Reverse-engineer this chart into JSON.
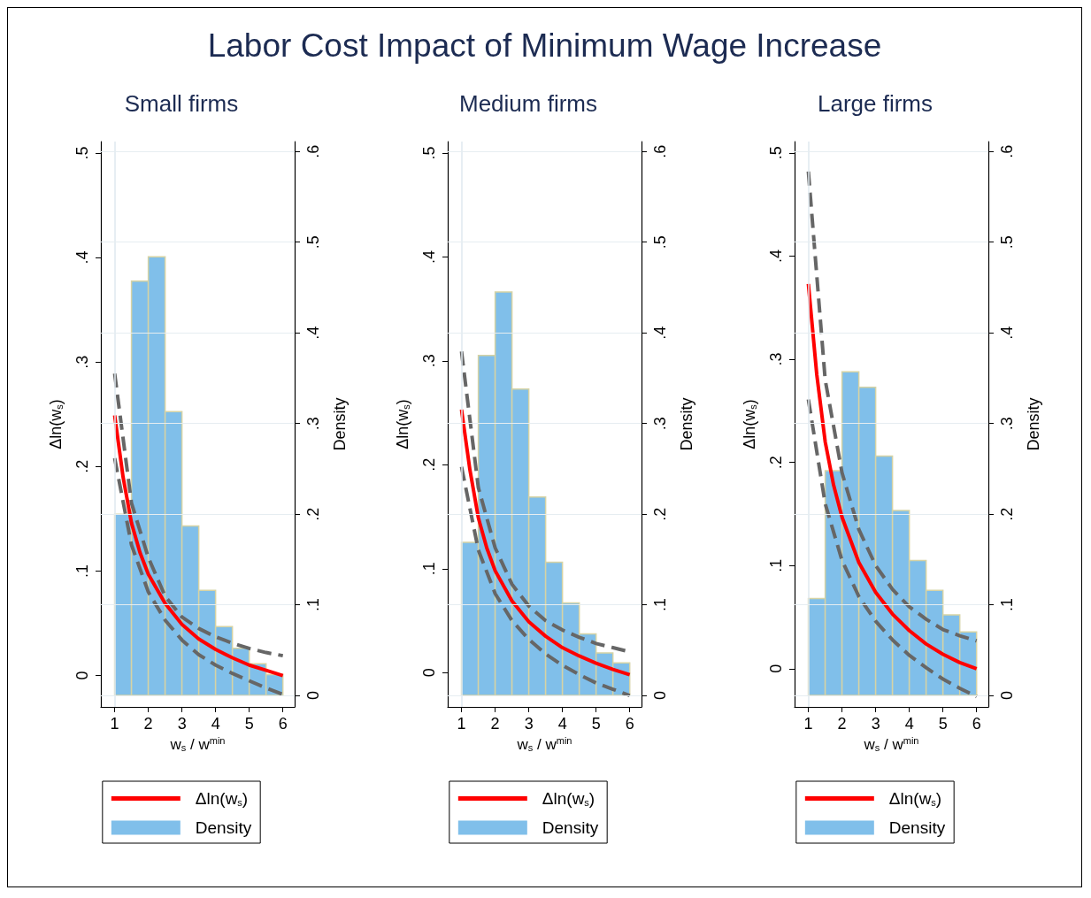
{
  "chart_data": [
    {
      "type": "line",
      "title": "Labor Cost Impact of Minimum Wage Increase",
      "subtitle": "Small firms",
      "xlabel": "w$_{s}$ / w$^{min}$",
      "ylabel": "Δln(w$_{s}$)",
      "y2label": "Density",
      "x": [
        1,
        1.25,
        1.5,
        1.75,
        2,
        2.5,
        3,
        3.5,
        4,
        4.5,
        5,
        5.5,
        6
      ],
      "series": [
        {
          "type": "histogram",
          "name": "Density",
          "axis": "y2",
          "color": "#80bfea",
          "bins": [
            1,
            1.5,
            2,
            2.5,
            3,
            3.5,
            4,
            4.5,
            5,
            5.5,
            6
          ],
          "values": [
            0.2,
            0.457,
            0.484,
            0.313,
            0.187,
            0.116,
            0.076,
            0.052,
            0.035,
            0.023
          ]
        },
        {
          "x": [
            1,
            1.5,
            2,
            2.5,
            3,
            3.5,
            4,
            4.5,
            5,
            5.5,
            6
          ],
          "color": "#666666",
          "line_style": "dashed",
          "values": [
            0.289,
            0.165,
            0.113,
            0.076,
            0.056,
            0.045,
            0.037,
            0.031,
            0.026,
            0.022,
            0.019
          ]
        },
        {
          "x": [
            1,
            1.5,
            2,
            2.5,
            3,
            3.5,
            4,
            4.5,
            5,
            5.5,
            6
          ],
          "color": "#666666",
          "line_style": "dashed",
          "values": [
            0.208,
            0.125,
            0.08,
            0.053,
            0.034,
            0.02,
            0.01,
            0.002,
            -0.005,
            -0.012,
            -0.018
          ]
        },
        {
          "name": "Δln(w$_{s}$)",
          "color": "#ff0000",
          "values": [
            0.249,
            0.19,
            0.146,
            0.118,
            0.097,
            0.069,
            0.049,
            0.035,
            0.025,
            0.017,
            0.01,
            0.005,
            0
          ]
        }
      ],
      "xlim": [
        0.59,
        6.35
      ],
      "xticks": [
        1,
        2,
        3,
        4,
        5,
        6
      ],
      "ylim": [
        -0.03,
        0.511
      ],
      "yticks": [
        {
          "value": 0,
          "label": "0"
        },
        {
          "value": 0.1,
          "label": ".1"
        },
        {
          "value": 0.2,
          "label": ".2"
        },
        {
          "value": 0.3,
          "label": ".3"
        },
        {
          "value": 0.4,
          "label": ".4"
        },
        {
          "value": 0.5,
          "label": ".5"
        }
      ],
      "y2lim": [
        -0.0126,
        0.611
      ],
      "y2ticks": [
        {
          "value": 0,
          "label": "0"
        },
        {
          "value": 0.1,
          "label": ".1"
        },
        {
          "value": 0.2,
          "label": ".2"
        },
        {
          "value": 0.3,
          "label": ".3"
        },
        {
          "value": 0.4,
          "label": ".4"
        },
        {
          "value": 0.5,
          "label": ".5"
        },
        {
          "value": 0.6,
          "label": ".6"
        }
      ],
      "ref_lines": [
        {
          "axis": "x",
          "value": 1,
          "color": "#dfe9ef"
        }
      ],
      "grid": "y",
      "legend": "bottom",
      "marker": "none",
      "line_style": "solid"
    },
    {
      "type": "line",
      "subtitle": "Medium firms",
      "xlabel": "w$_{s}$ / w$^{min}$",
      "ylabel": "Δln(w$_{s}$)",
      "y2label": "Density",
      "x": [
        1,
        1.25,
        1.5,
        1.75,
        2,
        2.5,
        3,
        3.5,
        4,
        4.5,
        5,
        5.5,
        6
      ],
      "series": [
        {
          "type": "histogram",
          "name": "Density",
          "axis": "y2",
          "color": "#80bfea",
          "bins": [
            1,
            1.5,
            2,
            2.5,
            3,
            3.5,
            4,
            4.5,
            5,
            5.5,
            6
          ],
          "values": [
            0.169,
            0.375,
            0.445,
            0.338,
            0.219,
            0.147,
            0.102,
            0.068,
            0.047,
            0.036
          ]
        },
        {
          "x": [
            1,
            1.5,
            2,
            2.5,
            3,
            3.5,
            4,
            4.5,
            5,
            5.5,
            6
          ],
          "color": "#666666",
          "line_style": "dashed",
          "values": [
            0.309,
            0.178,
            0.12,
            0.085,
            0.064,
            0.05,
            0.041,
            0.034,
            0.028,
            0.024,
            0.02
          ]
        },
        {
          "x": [
            1,
            1.5,
            2,
            2.5,
            3,
            3.5,
            4,
            4.5,
            5,
            5.5,
            6
          ],
          "color": "#666666",
          "line_style": "dashed",
          "values": [
            0.198,
            0.118,
            0.076,
            0.05,
            0.032,
            0.018,
            0.007,
            -0.002,
            -0.01,
            -0.016,
            -0.022
          ]
        },
        {
          "name": "Δln(w$_{s}$)",
          "color": "#ff0000",
          "values": [
            0.253,
            0.195,
            0.149,
            0.12,
            0.098,
            0.069,
            0.049,
            0.035,
            0.024,
            0.016,
            0.009,
            0.003,
            -0.002
          ]
        }
      ],
      "xlim": [
        0.59,
        6.35
      ],
      "xticks": [
        1,
        2,
        3,
        4,
        5,
        6
      ],
      "ylim": [
        -0.033,
        0.511
      ],
      "yticks": [
        {
          "value": 0,
          "label": "0"
        },
        {
          "value": 0.1,
          "label": ".1"
        },
        {
          "value": 0.2,
          "label": ".2"
        },
        {
          "value": 0.3,
          "label": ".3"
        },
        {
          "value": 0.4,
          "label": ".4"
        },
        {
          "value": 0.5,
          "label": ".5"
        }
      ],
      "y2lim": [
        -0.0126,
        0.611
      ],
      "y2ticks": [
        {
          "value": 0,
          "label": "0"
        },
        {
          "value": 0.1,
          "label": ".1"
        },
        {
          "value": 0.2,
          "label": ".2"
        },
        {
          "value": 0.3,
          "label": ".3"
        },
        {
          "value": 0.4,
          "label": ".4"
        },
        {
          "value": 0.5,
          "label": ".5"
        },
        {
          "value": 0.6,
          "label": ".6"
        }
      ],
      "ref_lines": [
        {
          "axis": "x",
          "value": 1,
          "color": "#dfe9ef"
        }
      ],
      "grid": "y",
      "legend": "bottom",
      "marker": "none",
      "line_style": "solid"
    },
    {
      "type": "line",
      "subtitle": "Large firms",
      "xlabel": "w$_{s}$ / w$^{min}$",
      "ylabel": "Δln(w$_{s}$)",
      "y2label": "Density",
      "x": [
        1,
        1.25,
        1.5,
        1.75,
        2,
        2.5,
        3,
        3.5,
        4,
        4.5,
        5,
        5.5,
        6
      ],
      "series": [
        {
          "type": "histogram",
          "name": "Density",
          "axis": "y2",
          "color": "#80bfea",
          "bins": [
            1,
            1.5,
            2,
            2.5,
            3,
            3.5,
            4,
            4.5,
            5,
            5.5,
            6
          ],
          "values": [
            0.107,
            0.248,
            0.357,
            0.34,
            0.264,
            0.204,
            0.149,
            0.116,
            0.089,
            0.07
          ]
        },
        {
          "x": [
            1,
            1.5,
            2,
            2.5,
            3,
            3.5,
            4,
            4.5,
            5,
            5.5,
            6
          ],
          "color": "#666666",
          "line_style": "dashed",
          "values": [
            0.482,
            0.28,
            0.19,
            0.135,
            0.1,
            0.077,
            0.06,
            0.048,
            0.038,
            0.032,
            0.027
          ]
        },
        {
          "x": [
            1,
            1.5,
            2,
            2.5,
            3,
            3.5,
            4,
            4.5,
            5,
            5.5,
            6
          ],
          "color": "#666666",
          "line_style": "dashed",
          "values": [
            0.261,
            0.16,
            0.105,
            0.07,
            0.046,
            0.028,
            0.013,
            0.001,
            -0.01,
            -0.019,
            -0.027
          ]
        },
        {
          "name": "Δln(w$_{s}$)",
          "color": "#ff0000",
          "values": [
            0.373,
            0.285,
            0.22,
            0.178,
            0.147,
            0.103,
            0.074,
            0.053,
            0.037,
            0.024,
            0.014,
            0.006,
            0
          ]
        }
      ],
      "xlim": [
        0.59,
        6.35
      ],
      "xticks": [
        1,
        2,
        3,
        4,
        5,
        6
      ],
      "ylim": [
        -0.037,
        0.511
      ],
      "yticks": [
        {
          "value": 0,
          "label": "0"
        },
        {
          "value": 0.1,
          "label": ".1"
        },
        {
          "value": 0.2,
          "label": ".2"
        },
        {
          "value": 0.3,
          "label": ".3"
        },
        {
          "value": 0.4,
          "label": ".4"
        },
        {
          "value": 0.5,
          "label": ".5"
        }
      ],
      "y2lim": [
        -0.0126,
        0.611
      ],
      "y2ticks": [
        {
          "value": 0,
          "label": "0"
        },
        {
          "value": 0.1,
          "label": ".1"
        },
        {
          "value": 0.2,
          "label": ".2"
        },
        {
          "value": 0.3,
          "label": ".3"
        },
        {
          "value": 0.4,
          "label": ".4"
        },
        {
          "value": 0.5,
          "label": ".5"
        },
        {
          "value": 0.6,
          "label": ".6"
        }
      ],
      "ref_lines": [
        {
          "axis": "x",
          "value": 1,
          "color": "#dfe9ef"
        }
      ],
      "grid": "y",
      "legend": "bottom",
      "marker": "none",
      "line_style": "solid"
    }
  ]
}
